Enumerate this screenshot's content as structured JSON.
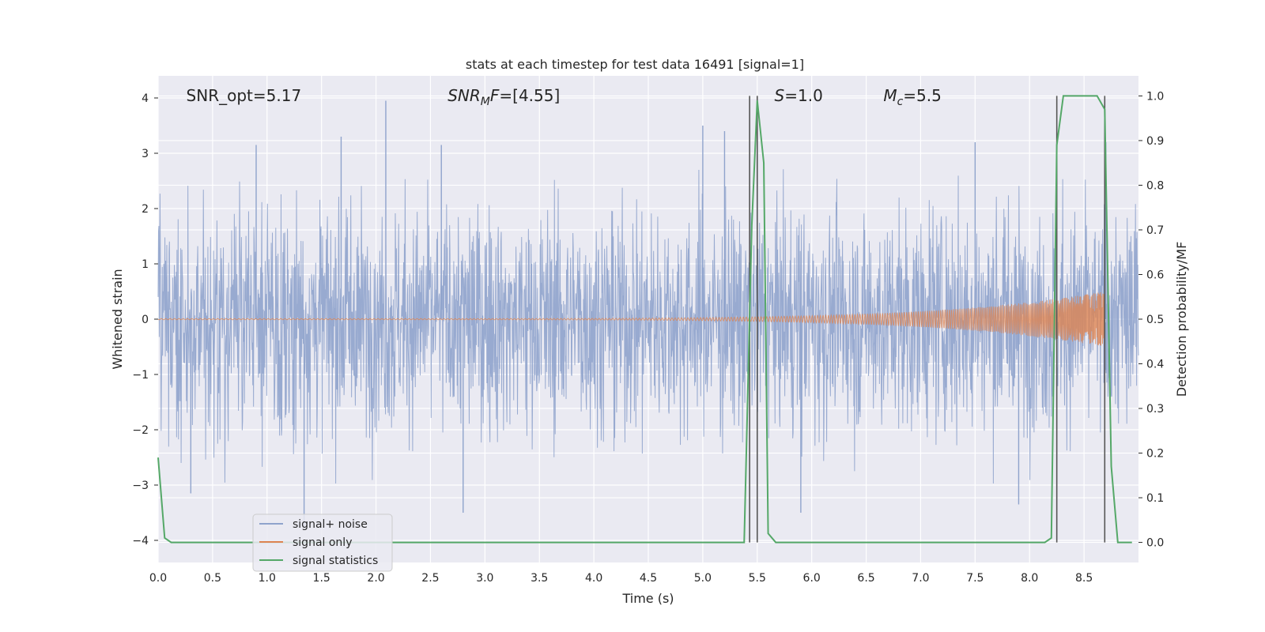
{
  "chart_data": {
    "type": "line",
    "title": "stats at each timestep for test data 16491 [signal=1]",
    "xlabel": "Time (s)",
    "ylabel": "Whitened strain",
    "y2label": "Detection probability/MF",
    "xlim": [
      0.0,
      9.0
    ],
    "ylim": [
      -4.4,
      4.4
    ],
    "y2lim": [
      -0.045,
      1.045
    ],
    "x_ticks": [
      0.0,
      0.5,
      1.0,
      1.5,
      2.0,
      2.5,
      3.0,
      3.5,
      4.0,
      4.5,
      5.0,
      5.5,
      6.0,
      6.5,
      7.0,
      7.5,
      8.0,
      8.5
    ],
    "x_tick_labels": [
      "0.0",
      "0.5",
      "1.0",
      "1.5",
      "2.0",
      "2.5",
      "3.0",
      "3.5",
      "4.0",
      "4.5",
      "5.0",
      "5.5",
      "6.0",
      "6.5",
      "7.0",
      "7.5",
      "8.0",
      "8.5"
    ],
    "y_ticks": [
      -4,
      -3,
      -2,
      -1,
      0,
      1,
      2,
      3,
      4
    ],
    "y_tick_labels": [
      "−4",
      "−3",
      "−2",
      "−1",
      "0",
      "1",
      "2",
      "3",
      "4"
    ],
    "y2_ticks": [
      0.0,
      0.1,
      0.2,
      0.3,
      0.4,
      0.5,
      0.6,
      0.7,
      0.8,
      0.9,
      1.0
    ],
    "y2_tick_labels": [
      "0.0",
      "0.1",
      "0.2",
      "0.3",
      "0.4",
      "0.5",
      "0.6",
      "0.7",
      "0.8",
      "0.9",
      "1.0"
    ],
    "grid": true,
    "legend_position": "lower-left",
    "annotations": [
      {
        "text": "SNR_opt=5.17",
        "x": 0.2,
        "y": 4.0
      },
      {
        "text": "SNR_MF=[4.55]",
        "x": 2.6,
        "y": 4.0
      },
      {
        "text": "S=1.0",
        "x": 5.6,
        "y": 4.0
      },
      {
        "text": "M_c=5.5",
        "x": 6.6,
        "y": 4.0
      }
    ],
    "vlines_x": [
      5.43,
      5.5,
      8.25,
      8.69
    ],
    "series": [
      {
        "name": "signal+ noise",
        "color": "#8fa3cc",
        "noise_envelope": {
          "std": 1.0,
          "max_positive": 4.0,
          "max_negative": -3.75
        },
        "peaks": [
          [
            0.9,
            3.15
          ],
          [
            1.68,
            3.3
          ],
          [
            2.09,
            3.95
          ],
          [
            2.6,
            3.15
          ],
          [
            5.0,
            3.5
          ],
          [
            5.2,
            3.4
          ],
          [
            7.5,
            3.2
          ],
          [
            8.7,
            3.2
          ],
          [
            1.34,
            -3.75
          ],
          [
            2.8,
            -3.5
          ],
          [
            5.9,
            -3.5
          ],
          [
            7.9,
            -3.35
          ],
          [
            0.3,
            -3.15
          ]
        ]
      },
      {
        "name": "signal only",
        "color": "#dd8452",
        "axis": "left",
        "chirp": {
          "start_x": 0.0,
          "end_x": 8.69,
          "amplitude_start": 0.01,
          "amplitude_end": 0.5
        }
      },
      {
        "name": "signal statistics",
        "color": "#55a868",
        "axis": "right",
        "x": [
          0.0,
          0.06,
          0.12,
          0.5,
          1.0,
          1.5,
          2.0,
          2.5,
          3.0,
          3.5,
          4.0,
          4.5,
          5.0,
          5.3,
          5.38,
          5.45,
          5.5,
          5.56,
          5.6,
          5.67,
          5.74,
          6.0,
          6.5,
          7.0,
          7.5,
          8.0,
          8.14,
          8.2,
          8.25,
          8.31,
          8.4,
          8.5,
          8.62,
          8.69,
          8.75,
          8.81,
          8.87,
          8.94
        ],
        "y": [
          0.19,
          0.01,
          0.0,
          0.0,
          0.0,
          0.0,
          0.0,
          0.0,
          0.0,
          0.0,
          0.0,
          0.0,
          0.0,
          0.0,
          0.0,
          0.71,
          0.99,
          0.85,
          0.02,
          0.0,
          0.0,
          0.0,
          0.0,
          0.0,
          0.0,
          0.0,
          0.0,
          0.01,
          0.89,
          1.0,
          1.0,
          1.0,
          1.0,
          0.97,
          0.17,
          0.0,
          0.0,
          0.0
        ]
      }
    ]
  }
}
